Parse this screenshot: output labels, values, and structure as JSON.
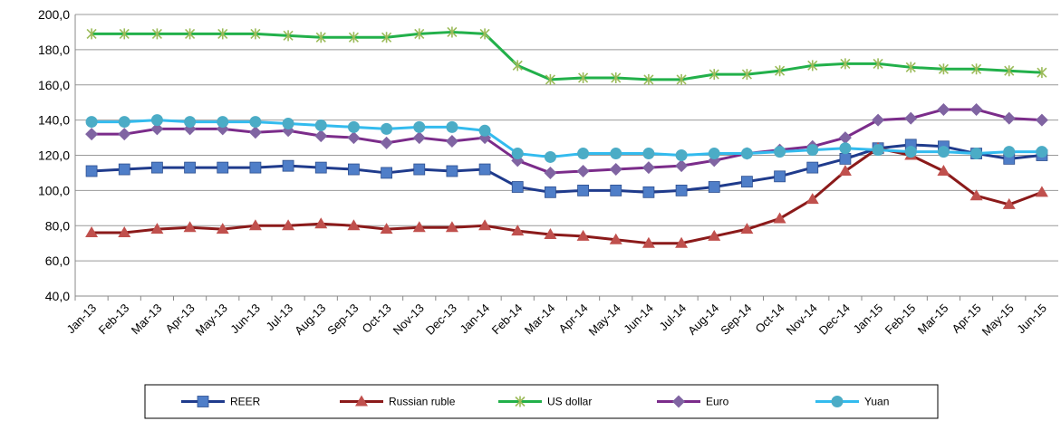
{
  "chart_data": {
    "type": "line",
    "categories": [
      "Jan-13",
      "Feb-13",
      "Mar-13",
      "Apr-13",
      "May-13",
      "Jun-13",
      "Jul-13",
      "Aug-13",
      "Sep-13",
      "Oct-13",
      "Nov-13",
      "Dec-13",
      "Jan-14",
      "Feb-14",
      "Mar-14",
      "Apr-14",
      "May-14",
      "Jun-14",
      "Jul-14",
      "Aug-14",
      "Sep-14",
      "Oct-14",
      "Nov-14",
      "Dec-14",
      "Jan-15",
      "Feb-15",
      "Mar-15",
      "Apr-15",
      "May-15",
      "Jun-15"
    ],
    "series": [
      {
        "name": "REER",
        "color": "#1f3b8c",
        "marker_color": "#4f7ec8",
        "marker": "square",
        "values": [
          111,
          112,
          113,
          113,
          113,
          113,
          114,
          113,
          112,
          110,
          112,
          111,
          112,
          102,
          99,
          100,
          100,
          99,
          100,
          102,
          105,
          108,
          113,
          118,
          124,
          126,
          125,
          121,
          118,
          120
        ]
      },
      {
        "name": "Russian ruble",
        "color": "#8b1a1a",
        "marker_color": "#c0504d",
        "marker": "triangle",
        "values": [
          76,
          76,
          78,
          79,
          78,
          80,
          80,
          81,
          80,
          78,
          79,
          79,
          80,
          77,
          75,
          74,
          72,
          70,
          70,
          74,
          78,
          84,
          95,
          111,
          124,
          120,
          111,
          97,
          92,
          99
        ]
      },
      {
        "name": "US dollar",
        "color": "#22b04a",
        "marker_color": "#9bbb59",
        "marker": "star",
        "values": [
          189,
          189,
          189,
          189,
          189,
          189,
          188,
          187,
          187,
          187,
          189,
          190,
          189,
          171,
          163,
          164,
          164,
          163,
          163,
          166,
          166,
          168,
          171,
          172,
          172,
          170,
          169,
          169,
          168,
          167
        ]
      },
      {
        "name": "Euro",
        "color": "#7b2c8a",
        "marker_color": "#8064a2",
        "marker": "diamond",
        "values": [
          132,
          132,
          135,
          135,
          135,
          133,
          134,
          131,
          130,
          127,
          130,
          128,
          130,
          117,
          110,
          111,
          112,
          113,
          114,
          117,
          121,
          123,
          125,
          130,
          140,
          141,
          146,
          146,
          141,
          140
        ]
      },
      {
        "name": "Yuan",
        "color": "#33bbee",
        "marker_color": "#4bacc6",
        "marker": "circle",
        "values": [
          139,
          139,
          140,
          139,
          139,
          139,
          138,
          137,
          136,
          135,
          136,
          136,
          134,
          121,
          119,
          121,
          121,
          121,
          120,
          121,
          121,
          122,
          123,
          124,
          123,
          122,
          122,
          121,
          122,
          122
        ]
      }
    ],
    "ylim": [
      40,
      200
    ],
    "yticks": [
      {
        "value": 40,
        "label": "40,0"
      },
      {
        "value": 60,
        "label": "60,0"
      },
      {
        "value": 80,
        "label": "80,0"
      },
      {
        "value": 100,
        "label": "100,0"
      },
      {
        "value": 120,
        "label": "120,0"
      },
      {
        "value": 140,
        "label": "140,0"
      },
      {
        "value": 160,
        "label": "160,0"
      },
      {
        "value": 180,
        "label": "180,0"
      },
      {
        "value": 200,
        "label": "200,0"
      }
    ],
    "grid": true,
    "legend": "bottom"
  }
}
